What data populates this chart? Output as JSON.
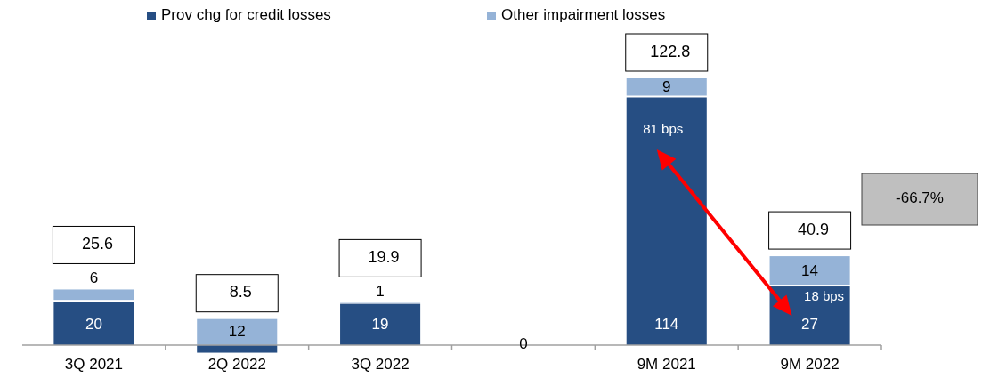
{
  "chart_data": {
    "type": "bar",
    "stacked": true,
    "legend": "top",
    "categories": [
      "3Q 2021",
      "2Q 2022",
      "3Q 2022",
      null,
      "9M 2021",
      "9M 2022"
    ],
    "series": [
      {
        "name": "Prov chg for credit losses",
        "color": "#264e83",
        "values": [
          20,
          -3.5,
          19,
          0,
          114,
          27
        ],
        "value_labels": [
          "20",
          null,
          "19",
          "0",
          "114",
          "27"
        ]
      },
      {
        "name": "Other impairment losses",
        "color": "#95b3d7",
        "values": [
          5.6,
          12,
          0.9,
          null,
          8.8,
          13.9
        ],
        "value_labels": [
          "6",
          "12",
          "1",
          null,
          "9",
          "14"
        ]
      }
    ],
    "totals": [
      "25.6",
      "8.5",
      "19.9",
      null,
      "122.8",
      "40.9"
    ],
    "annotations": [
      "81 bps",
      "18 bps",
      "-66.7%"
    ]
  }
}
